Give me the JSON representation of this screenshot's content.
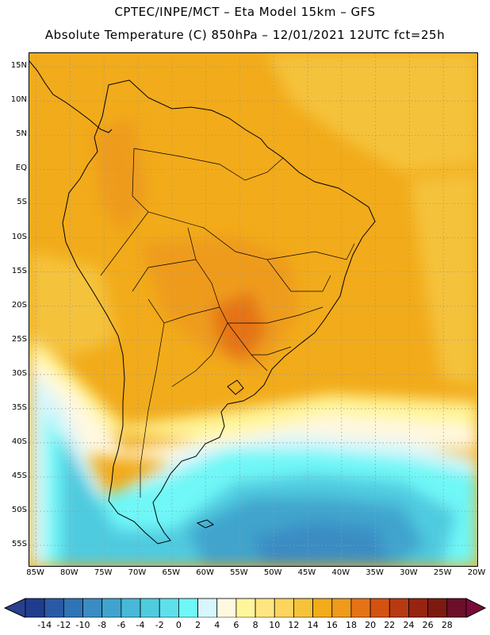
{
  "header": {
    "line1": "CPTEC/INPE/MCT –  Eta Model 15km – GFS",
    "line2": "Absolute Temperature (C) 850hPa – 12/01/2021 12UTC fct=25h"
  },
  "map": {
    "lat_labels": [
      "15N",
      "10N",
      "5N",
      "EQ",
      "5S",
      "10S",
      "15S",
      "20S",
      "25S",
      "30S",
      "35S",
      "40S",
      "45S",
      "50S",
      "55S"
    ],
    "lon_labels": [
      "85W",
      "80W",
      "75W",
      "70W",
      "65W",
      "60W",
      "55W",
      "50W",
      "45W",
      "40W",
      "35W",
      "30W",
      "25W",
      "20W"
    ],
    "lat_values": [
      15,
      10,
      5,
      0,
      -5,
      -10,
      -15,
      -20,
      -25,
      -30,
      -35,
      -40,
      -45,
      -50,
      -55
    ],
    "lon_values": [
      -85,
      -80,
      -75,
      -70,
      -65,
      -60,
      -55,
      -50,
      -45,
      -40,
      -35,
      -30,
      -25,
      -20
    ],
    "lat_range": [
      -58,
      17
    ],
    "lon_range": [
      -86,
      -20
    ]
  },
  "colorbar": {
    "labels": [
      "-14",
      "-12",
      "-10",
      "-8",
      "-6",
      "-4",
      "-2",
      "0",
      "2",
      "4",
      "6",
      "8",
      "10",
      "12",
      "14",
      "16",
      "18",
      "20",
      "22",
      "24",
      "26",
      "28"
    ],
    "colors": [
      "#1f3d8c",
      "#2a5aa5",
      "#2f74b5",
      "#3a8cc3",
      "#3fa4cd",
      "#47b8d8",
      "#4fcbe0",
      "#5ee0ea",
      "#6ff7f7",
      "#d7f6fb",
      "#fff8e0",
      "#fff59a",
      "#ffe680",
      "#fcd45e",
      "#f5c23a",
      "#f2ab1a",
      "#ee9b1c",
      "#e57316",
      "#d35211",
      "#b73a10",
      "#962410",
      "#7c1a12",
      "#6b0f2a"
    ],
    "under_color": "#2a3f8f",
    "over_color": "#7a0a3a"
  }
}
